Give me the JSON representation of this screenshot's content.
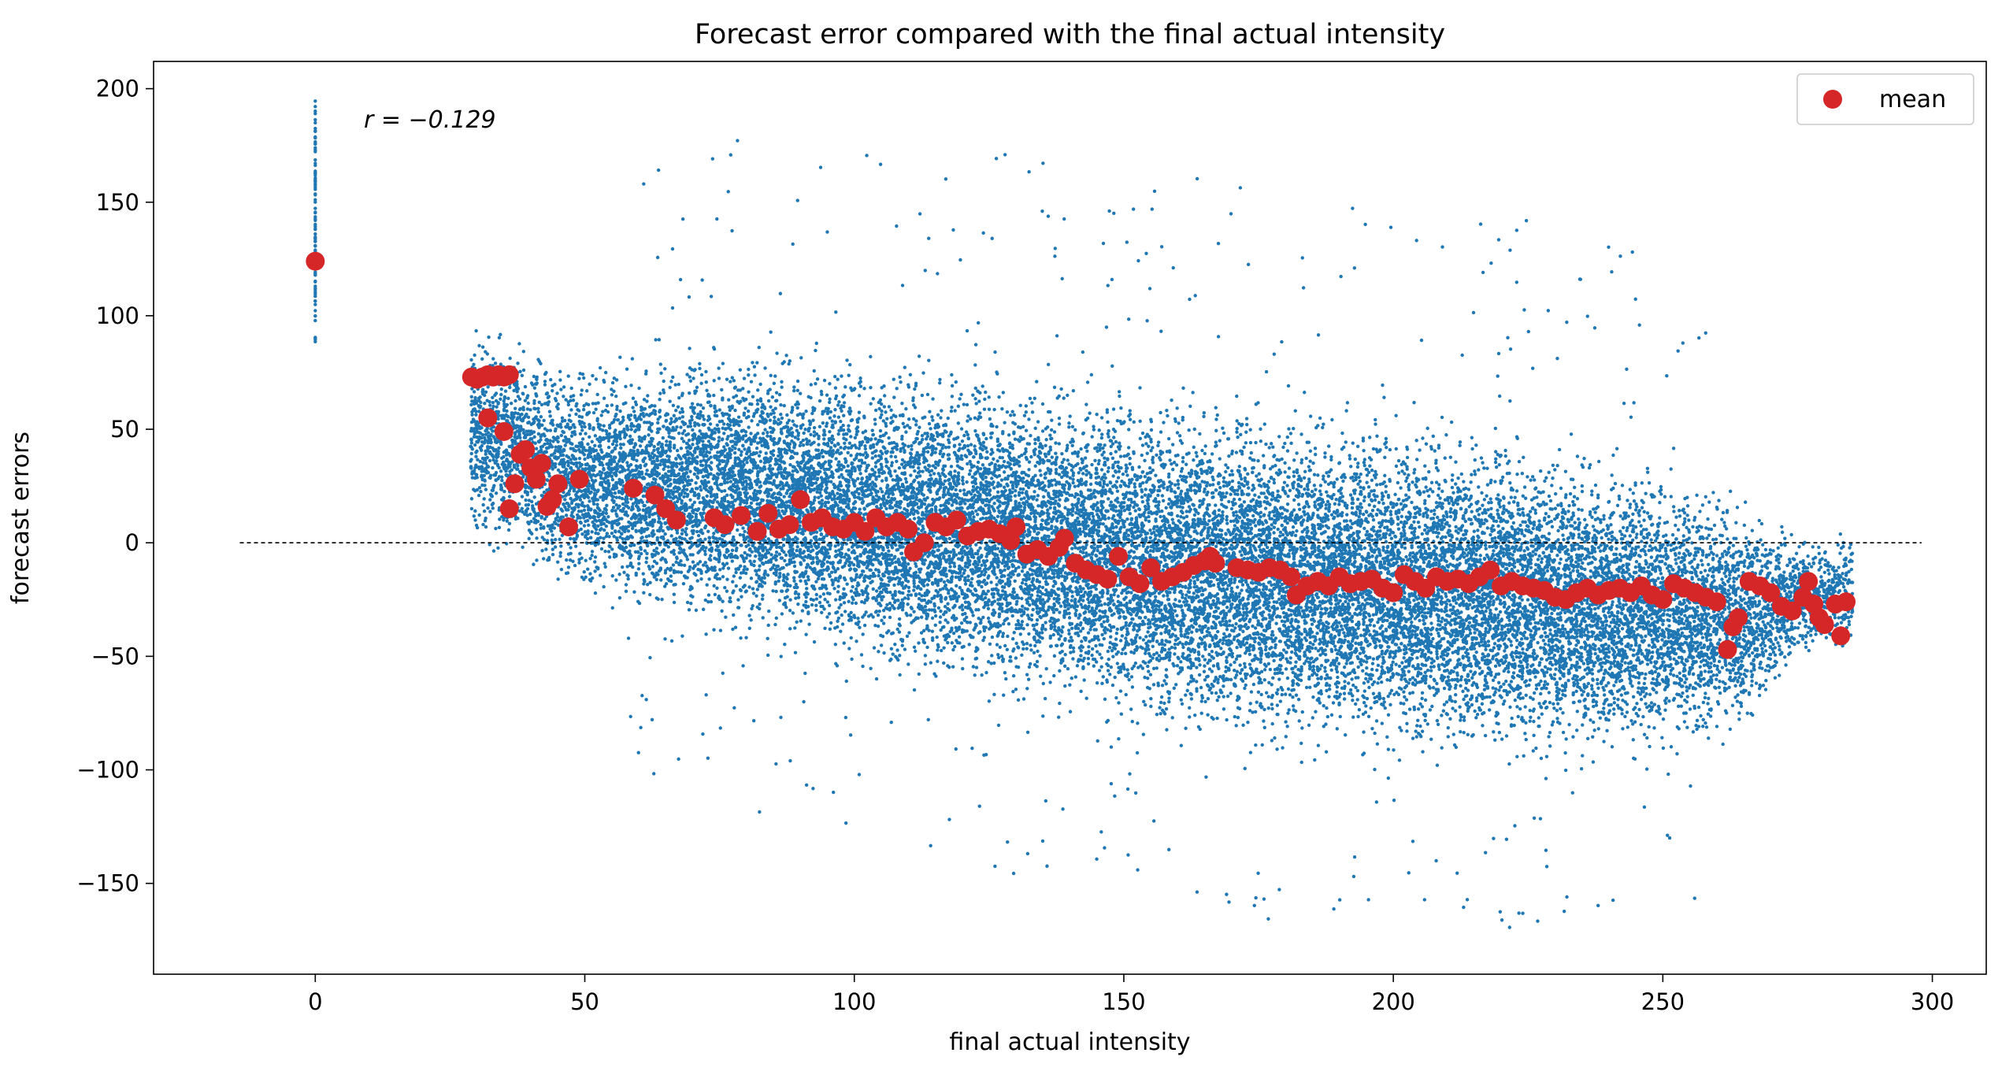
{
  "chart_data": {
    "type": "scatter",
    "title": "Forecast error compared with the final actual intensity",
    "xlabel": "final actual intensity",
    "ylabel": "forecast errors",
    "xlim": [
      -30,
      310
    ],
    "ylim": [
      -190,
      212
    ],
    "x_ticks": [
      0,
      50,
      100,
      150,
      200,
      250,
      300
    ],
    "y_ticks": [
      -150,
      -100,
      -50,
      0,
      50,
      100,
      150,
      200
    ],
    "x_tick_labels": [
      "0",
      "50",
      "100",
      "150",
      "200",
      "250",
      "300"
    ],
    "y_tick_labels": [
      "−150",
      "−100",
      "−50",
      "0",
      "50",
      "100",
      "150",
      "200"
    ],
    "annotation": "r = −0.129",
    "reference_line": {
      "y": 0,
      "x_range": [
        -14,
        298
      ],
      "style": "dashed",
      "color": "#000000"
    },
    "grid": false,
    "legend": {
      "position": "top-right",
      "entries": [
        "mean"
      ]
    },
    "colors": {
      "points": "#1f77b4",
      "mean": "#d62728"
    },
    "series": [
      {
        "kind": "all-errors",
        "color": "#1f77b4",
        "note_shape_profile": [
          {
            "x": 0,
            "lo": 88,
            "hi": 195
          },
          {
            "x": 29,
            "lo": -2,
            "hi": 96
          },
          {
            "x": 35,
            "lo": -8,
            "hi": 98
          },
          {
            "x": 45,
            "lo": -22,
            "hi": 82
          },
          {
            "x": 60,
            "lo": -35,
            "hi": 85
          },
          {
            "x": 80,
            "lo": -50,
            "hi": 95
          },
          {
            "x": 100,
            "lo": -62,
            "hi": 88
          },
          {
            "x": 120,
            "lo": -72,
            "hi": 84
          },
          {
            "x": 140,
            "lo": -82,
            "hi": 78
          },
          {
            "x": 160,
            "lo": -92,
            "hi": 72
          },
          {
            "x": 180,
            "lo": -100,
            "hi": 68
          },
          {
            "x": 200,
            "lo": -100,
            "hi": 62
          },
          {
            "x": 220,
            "lo": -102,
            "hi": 55
          },
          {
            "x": 240,
            "lo": -104,
            "hi": 45
          },
          {
            "x": 255,
            "lo": -95,
            "hi": 35
          },
          {
            "x": 265,
            "lo": -88,
            "hi": 22
          },
          {
            "x": 275,
            "lo": -55,
            "hi": 8
          },
          {
            "x": 285,
            "lo": -50,
            "hi": 5
          }
        ]
      },
      {
        "name": "mean",
        "color": "#d62728",
        "points": [
          [
            0,
            124
          ],
          [
            29,
            73
          ],
          [
            30,
            72
          ],
          [
            31,
            73
          ],
          [
            32,
            74
          ],
          [
            33,
            73
          ],
          [
            34,
            74
          ],
          [
            35,
            73
          ],
          [
            36,
            74
          ],
          [
            32,
            55
          ],
          [
            35,
            49
          ],
          [
            36,
            15
          ],
          [
            37,
            26
          ],
          [
            38,
            39
          ],
          [
            39,
            41
          ],
          [
            40,
            33
          ],
          [
            41,
            28
          ],
          [
            42,
            35
          ],
          [
            43,
            16
          ],
          [
            44,
            19
          ],
          [
            45,
            26
          ],
          [
            47,
            7
          ],
          [
            49,
            28
          ],
          [
            59,
            24
          ],
          [
            63,
            21
          ],
          [
            65,
            15
          ],
          [
            67,
            10
          ],
          [
            74,
            11
          ],
          [
            76,
            8
          ],
          [
            79,
            12
          ],
          [
            82,
            5
          ],
          [
            84,
            13
          ],
          [
            86,
            6
          ],
          [
            88,
            8
          ],
          [
            90,
            19
          ],
          [
            92,
            9
          ],
          [
            94,
            11
          ],
          [
            96,
            7
          ],
          [
            98,
            6
          ],
          [
            100,
            9
          ],
          [
            102,
            5
          ],
          [
            104,
            11
          ],
          [
            106,
            7
          ],
          [
            108,
            9
          ],
          [
            110,
            6
          ],
          [
            111,
            -4
          ],
          [
            113,
            0
          ],
          [
            115,
            9
          ],
          [
            117,
            7
          ],
          [
            119,
            10
          ],
          [
            121,
            3
          ],
          [
            123,
            5
          ],
          [
            125,
            6
          ],
          [
            127,
            4
          ],
          [
            129,
            1
          ],
          [
            130,
            7
          ],
          [
            132,
            -5
          ],
          [
            134,
            -3
          ],
          [
            136,
            -6
          ],
          [
            138,
            -2
          ],
          [
            139,
            2
          ],
          [
            141,
            -9
          ],
          [
            143,
            -12
          ],
          [
            145,
            -14
          ],
          [
            147,
            -16
          ],
          [
            149,
            -6
          ],
          [
            151,
            -15
          ],
          [
            153,
            -18
          ],
          [
            155,
            -11
          ],
          [
            157,
            -17
          ],
          [
            159,
            -15
          ],
          [
            161,
            -13
          ],
          [
            163,
            -10
          ],
          [
            165,
            -8
          ],
          [
            166,
            -6
          ],
          [
            167,
            -9
          ],
          [
            171,
            -11
          ],
          [
            173,
            -12
          ],
          [
            175,
            -13
          ],
          [
            177,
            -11
          ],
          [
            179,
            -12
          ],
          [
            181,
            -15
          ],
          [
            182,
            -23
          ],
          [
            184,
            -19
          ],
          [
            186,
            -17
          ],
          [
            188,
            -19
          ],
          [
            190,
            -15
          ],
          [
            192,
            -18
          ],
          [
            194,
            -17
          ],
          [
            196,
            -16
          ],
          [
            198,
            -20
          ],
          [
            200,
            -22
          ],
          [
            202,
            -14
          ],
          [
            204,
            -17
          ],
          [
            206,
            -20
          ],
          [
            208,
            -15
          ],
          [
            210,
            -17
          ],
          [
            212,
            -16
          ],
          [
            214,
            -18
          ],
          [
            216,
            -15
          ],
          [
            218,
            -12
          ],
          [
            220,
            -19
          ],
          [
            222,
            -17
          ],
          [
            224,
            -19
          ],
          [
            226,
            -20
          ],
          [
            228,
            -21
          ],
          [
            230,
            -24
          ],
          [
            232,
            -25
          ],
          [
            234,
            -22
          ],
          [
            236,
            -20
          ],
          [
            238,
            -23
          ],
          [
            240,
            -21
          ],
          [
            242,
            -20
          ],
          [
            244,
            -22
          ],
          [
            246,
            -19
          ],
          [
            248,
            -23
          ],
          [
            250,
            -25
          ],
          [
            252,
            -18
          ],
          [
            254,
            -20
          ],
          [
            256,
            -22
          ],
          [
            258,
            -24
          ],
          [
            260,
            -26
          ],
          [
            262,
            -47
          ],
          [
            263,
            -37
          ],
          [
            264,
            -33
          ],
          [
            266,
            -17
          ],
          [
            268,
            -19
          ],
          [
            270,
            -22
          ],
          [
            272,
            -28
          ],
          [
            274,
            -30
          ],
          [
            276,
            -24
          ],
          [
            277,
            -17
          ],
          [
            278,
            -27
          ],
          [
            279,
            -33
          ],
          [
            280,
            -36
          ],
          [
            282,
            -27
          ],
          [
            283,
            -41
          ],
          [
            284,
            -26
          ]
        ]
      }
    ]
  }
}
